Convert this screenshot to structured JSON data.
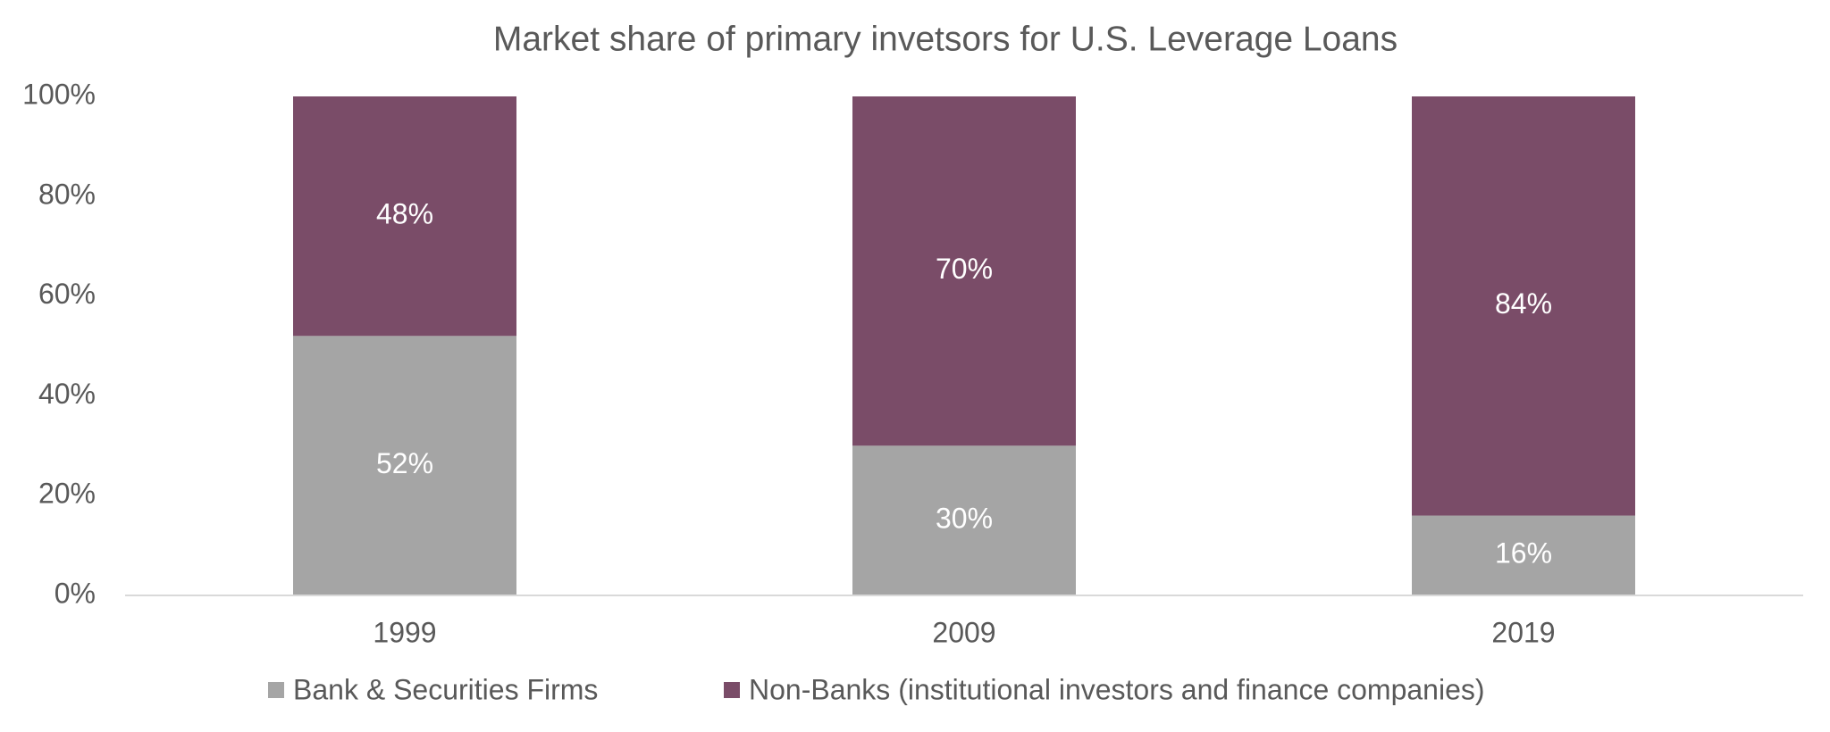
{
  "chart_data": {
    "type": "stacked_bar",
    "title": "Market share of primary invetsors for U.S. Leverage Loans",
    "categories": [
      "1999",
      "2009",
      "2019"
    ],
    "series": [
      {
        "name": "Bank & Securities Firms",
        "color": "#a5a5a5",
        "values": [
          52,
          30,
          16
        ],
        "value_labels": [
          "52%",
          "30%",
          "16%"
        ]
      },
      {
        "name": "Non-Banks (institutional investors and finance companies)",
        "color": "#7a4c68",
        "values": [
          48,
          70,
          84
        ],
        "value_labels": [
          "48%",
          "70%",
          "84%"
        ]
      }
    ],
    "ylim": [
      0,
      100
    ],
    "yticks": [
      {
        "value": 0,
        "label": "0%"
      },
      {
        "value": 20,
        "label": "20%"
      },
      {
        "value": 40,
        "label": "40%"
      },
      {
        "value": 60,
        "label": "60%"
      },
      {
        "value": 80,
        "label": "80%"
      },
      {
        "value": 100,
        "label": "100%"
      }
    ],
    "grid": false,
    "legend": "bottom"
  }
}
